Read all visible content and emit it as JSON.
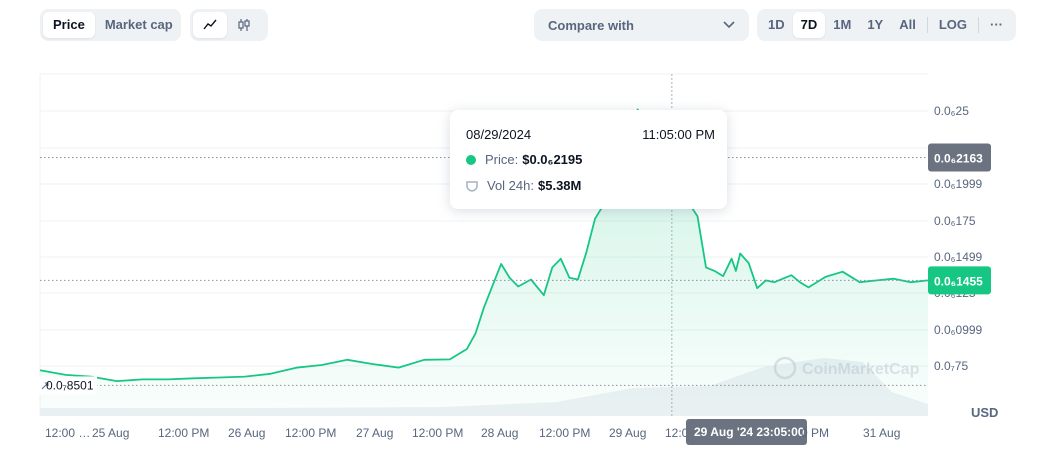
{
  "toolbar": {
    "type_tabs": [
      {
        "label": "Price",
        "active": true
      },
      {
        "label": "Market cap",
        "active": false
      }
    ],
    "chart_tabs": [
      {
        "icon": "line-chart-icon",
        "active": true
      },
      {
        "icon": "candlestick-icon",
        "active": false
      }
    ],
    "compare_label": "Compare with",
    "ranges": [
      {
        "label": "1D",
        "active": false
      },
      {
        "label": "7D",
        "active": true
      },
      {
        "label": "1M",
        "active": false
      },
      {
        "label": "1Y",
        "active": false
      },
      {
        "label": "All",
        "active": false
      },
      {
        "label": "LOG",
        "active": false
      }
    ],
    "more_label": "···"
  },
  "tooltip": {
    "date": "08/29/2024",
    "time": "11:05:00 PM",
    "price_label": "Price:",
    "price_value": "$0.0₆2195",
    "vol_label": "Vol 24h:",
    "vol_value": "$5.38M"
  },
  "watermark": "CoinMarketCap",
  "colors": {
    "line": "#16c784",
    "badge_current": "#16c784",
    "badge_hover": "#6b7280",
    "text_muted": "#58667e"
  },
  "chart_data": {
    "type": "area",
    "currency": "USD",
    "y_axis_ticks": [
      "0.0₆25",
      "0.0₆2249",
      "0.0₆1999",
      "0.0₆175",
      "0.0₆1499",
      "0.0₆125",
      "0.0₆0999",
      "0.0₇75"
    ],
    "x_axis_ticks": [
      "12:00 …",
      "25 Aug",
      "12:00 PM",
      "26 Aug",
      "12:00 PM",
      "27 Aug",
      "12:00 PM",
      "28 Aug",
      "12:00 PM",
      "29 Aug",
      "12:0",
      "29 Aug '24 23:05:00",
      "0 PM",
      "31 Aug"
    ],
    "ylim": [
      6.74e-08,
      2.644e-07
    ],
    "price_badges": {
      "hover": "0.0₆2163",
      "current": "0.0₆1455",
      "start_label": "0.0₇8501"
    },
    "hover_time": "29 Aug '24 23:05:00",
    "x": [
      0,
      6,
      12,
      18,
      24,
      30,
      36,
      42,
      48,
      54,
      60,
      66,
      72,
      78,
      84,
      90,
      96,
      100,
      102,
      104,
      108,
      110,
      112,
      115,
      118,
      120,
      122,
      124,
      126,
      128,
      130,
      132,
      134,
      136,
      140,
      144,
      148,
      150,
      152,
      154,
      156,
      158,
      160,
      162,
      163,
      164,
      166,
      168,
      170,
      172,
      174,
      176,
      178,
      180,
      184,
      188,
      192,
      196,
      200,
      204,
      208
    ],
    "series": [
      {
        "values": [
          9.37e-08,
          9.11e-08,
          9.01e-08,
          8.75e-08,
          8.85e-08,
          8.85e-08,
          8.91e-08,
          8.96e-08,
          9.01e-08,
          9.17e-08,
          9.52e-08,
          9.68e-08,
          9.98e-08,
          9.73e-08,
          9.53e-08,
          9.98e-08,
          1e-07,
          1.06e-07,
          1.15e-07,
          1.3e-07,
          1.55e-07,
          1.47e-07,
          1.42e-07,
          1.46e-07,
          1.37e-07,
          1.53e-07,
          1.58e-07,
          1.47e-07,
          1.46e-07,
          1.62e-07,
          1.81e-07,
          1.89e-07,
          1.95e-07,
          2.15e-07,
          2.44e-07,
          2.195e-07,
          2e-07,
          2.075e-07,
          1.9e-07,
          1.825e-07,
          1.53e-07,
          1.51e-07,
          1.48e-07,
          1.58e-07,
          1.51e-07,
          1.61e-07,
          1.555e-07,
          1.41e-07,
          1.455e-07,
          1.445e-07,
          1.465e-07,
          1.485e-07,
          1.445e-07,
          1.415e-07,
          1.475e-07,
          1.505e-07,
          1.445e-07,
          1.455e-07,
          1.465e-07,
          1.445e-07,
          1.455e-07
        ]
      }
    ]
  }
}
